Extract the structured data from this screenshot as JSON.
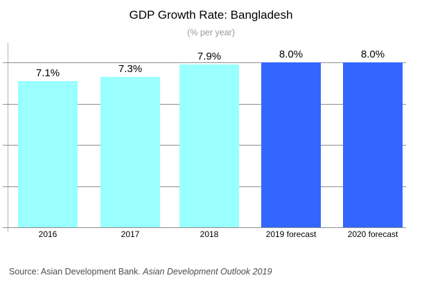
{
  "chart_data": {
    "type": "bar",
    "title": "GDP Growth Rate: Bangladesh",
    "subtitle": "(% per year)",
    "categories": [
      "2016",
      "2017",
      "2018",
      "2019 forecast",
      "2020 forecast"
    ],
    "values": [
      7.1,
      7.3,
      7.9,
      8.0,
      8.0
    ],
    "value_labels": [
      "7.1%",
      "7.3%",
      "7.9%",
      "8.0%",
      "8.0%"
    ],
    "bar_colors": [
      "#99FFFF",
      "#99FFFF",
      "#99FFFF",
      "#3366FF",
      "#3366FF"
    ],
    "ylim": [
      0,
      9
    ],
    "gridline_values": [
      0,
      2,
      4,
      6,
      8
    ],
    "grid": "horizontal",
    "legend": "none",
    "xlabel": "",
    "ylabel": ""
  },
  "source": {
    "prefix": "Source: Asian Development Bank. ",
    "publication": "Asian Development Outlook 2019"
  },
  "colors": {
    "cyan_bar": "#99FFFF",
    "blue_bar": "#3366FF",
    "gridline": "#8c8c8c",
    "axis": "#b3b3b3",
    "subtitle_text": "#999999",
    "source_text": "#4d4d4d"
  }
}
